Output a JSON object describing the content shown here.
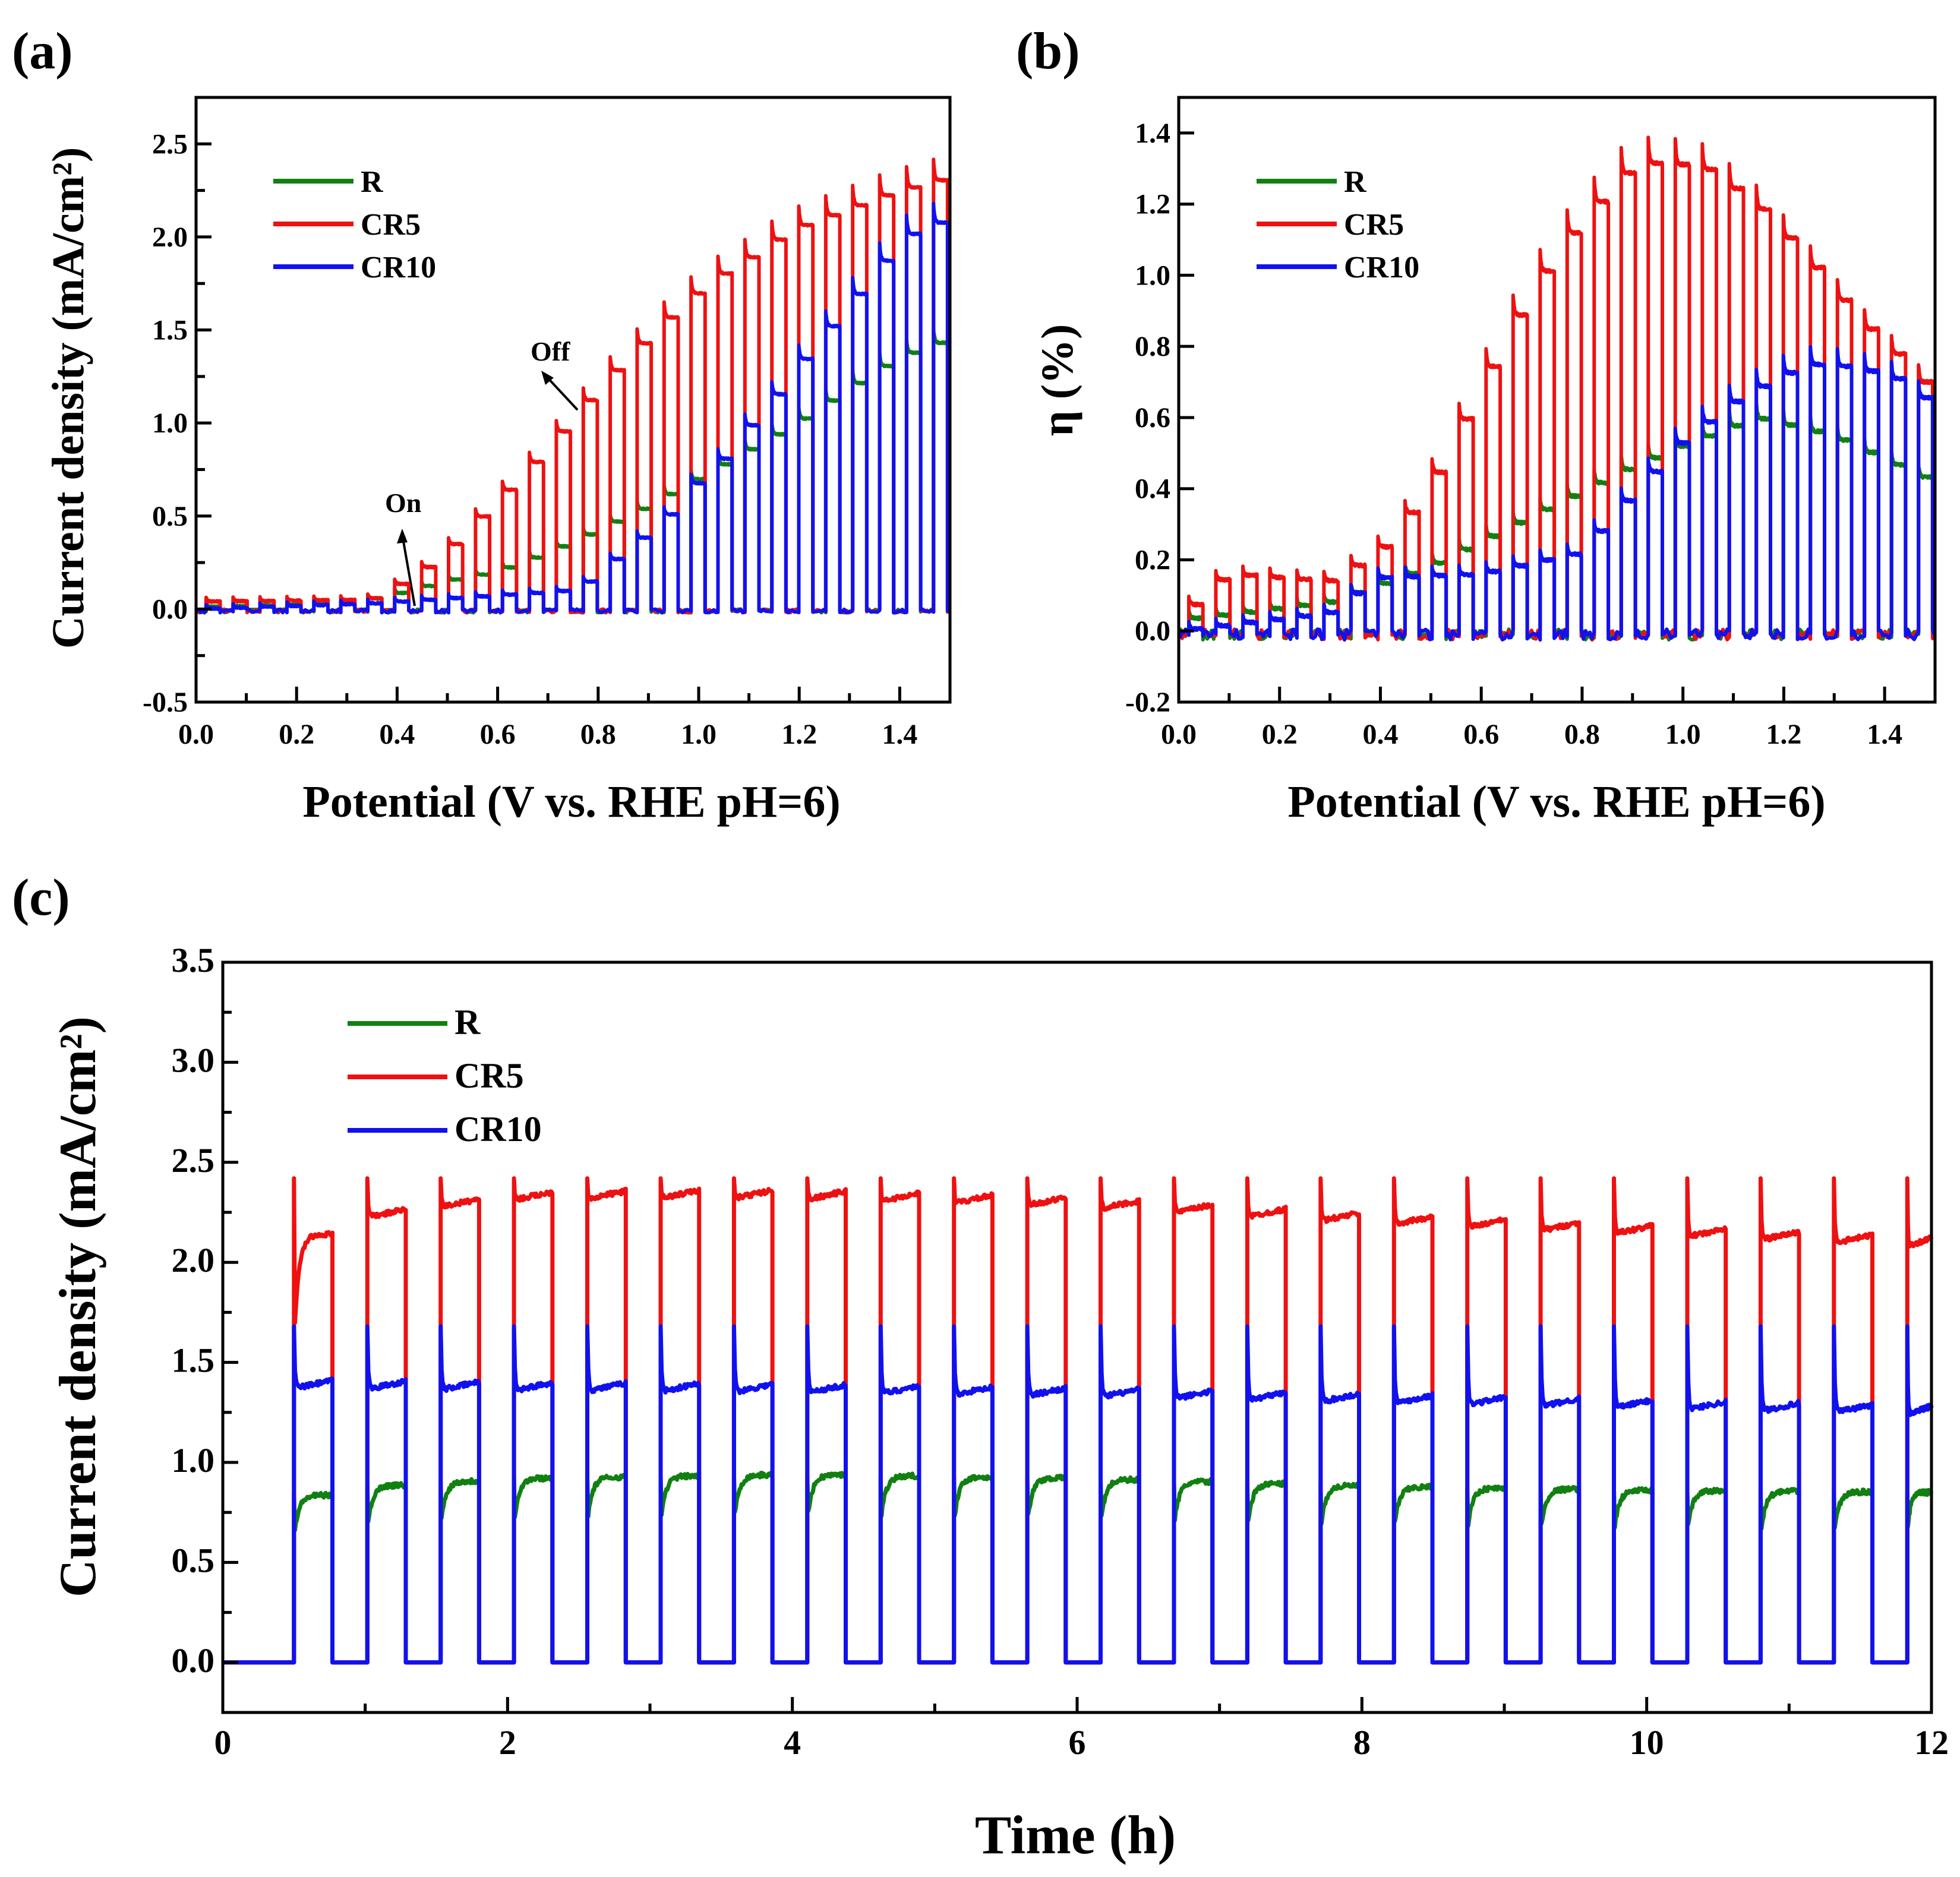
{
  "colors": {
    "R": "#118011",
    "CR5": "#ee1111",
    "CR10": "#1111ee",
    "axis": "#000000"
  },
  "chart_data": [
    {
      "panel": "(a)",
      "type": "line",
      "xlabel": "Potential (V vs. RHE pH=6)",
      "ylabel": "Current density (mA/cm²)",
      "xlim": [
        0,
        1.5
      ],
      "ylim": [
        -0.5,
        2.75
      ],
      "xticks": [
        "0.0",
        "0.2",
        "0.4",
        "0.6",
        "0.8",
        "1.0",
        "1.2",
        "1.4"
      ],
      "yticks": [
        "-0.5",
        "0.0",
        "0.5",
        "1.0",
        "1.5",
        "2.0",
        "2.5"
      ],
      "legend": {
        "placement": "top-left",
        "entries": [
          "R",
          "CR5",
          "CR10"
        ]
      },
      "annotations": [
        "On",
        "Off"
      ],
      "chopping": {
        "first_on": 0.02,
        "period": 0.0536,
        "on_width": 0.028
      },
      "series": [
        {
          "name": "R",
          "light_on_x": [
            0,
            0.3,
            0.4,
            0.5,
            0.6,
            0.7,
            0.8,
            0.9,
            1.0,
            1.1,
            1.2,
            1.3,
            1.4,
            1.5
          ],
          "light_on_y": [
            0.01,
            0.03,
            0.08,
            0.15,
            0.2,
            0.3,
            0.42,
            0.55,
            0.7,
            0.85,
            1.0,
            1.18,
            1.35,
            1.45
          ]
        },
        {
          "name": "CR5",
          "light_on_x": [
            0,
            0.35,
            0.4,
            0.45,
            0.5,
            0.55,
            0.6,
            0.65,
            0.7,
            0.75,
            0.8,
            0.85,
            0.9,
            0.95,
            1.0,
            1.05,
            1.1,
            1.15,
            1.2,
            1.25,
            1.3,
            1.35,
            1.4,
            1.45,
            1.5
          ],
          "light_on_y": [
            0.04,
            0.05,
            0.12,
            0.2,
            0.3,
            0.45,
            0.57,
            0.72,
            0.85,
            1.02,
            1.17,
            1.32,
            1.45,
            1.58,
            1.7,
            1.8,
            1.88,
            1.97,
            2.05,
            2.1,
            2.15,
            2.2,
            2.25,
            2.28,
            2.32
          ]
        },
        {
          "name": "CR10",
          "light_on_x": [
            0,
            0.35,
            0.75,
            0.8,
            0.85,
            0.9,
            0.95,
            1.0,
            1.05,
            1.1,
            1.15,
            1.2,
            1.25,
            1.3,
            1.35,
            1.4,
            1.45,
            1.5
          ],
          "light_on_y": [
            0.0,
            0.03,
            0.1,
            0.17,
            0.3,
            0.4,
            0.52,
            0.68,
            0.8,
            0.97,
            1.12,
            1.3,
            1.47,
            1.62,
            1.8,
            1.95,
            2.07,
            2.08
          ]
        }
      ]
    },
    {
      "panel": "(b)",
      "type": "line",
      "xlabel": "Potential (V vs. RHE pH=6)",
      "ylabel": "η (%)",
      "xlim": [
        0,
        1.5
      ],
      "ylim": [
        -0.2,
        1.5
      ],
      "xticks": [
        "0.0",
        "0.2",
        "0.4",
        "0.6",
        "0.8",
        "1.0",
        "1.2",
        "1.4"
      ],
      "yticks": [
        "-0.2",
        "0.0",
        "0.2",
        "0.4",
        "0.6",
        "0.8",
        "1.0",
        "1.2",
        "1.4"
      ],
      "legend": {
        "placement": "top-left",
        "entries": [
          "R",
          "CR5",
          "CR10"
        ]
      },
      "chopping": {
        "first_on": 0.02,
        "period": 0.0536,
        "on_width": 0.028
      },
      "series": [
        {
          "name": "R",
          "light_on_x": [
            0,
            0.3,
            0.5,
            0.7,
            0.9,
            1.0,
            1.15,
            1.3,
            1.5
          ],
          "light_on_y": [
            0.03,
            0.08,
            0.18,
            0.32,
            0.46,
            0.52,
            0.6,
            0.55,
            0.42
          ]
        },
        {
          "name": "CR5",
          "light_on_x": [
            0,
            0.1,
            0.3,
            0.4,
            0.5,
            0.6,
            0.7,
            0.8,
            0.9,
            0.96,
            1.05,
            1.15,
            1.25,
            1.35,
            1.45,
            1.5
          ],
          "light_on_y": [
            0.03,
            0.16,
            0.14,
            0.22,
            0.4,
            0.68,
            0.95,
            1.15,
            1.3,
            1.32,
            1.3,
            1.2,
            1.05,
            0.88,
            0.75,
            0.67
          ]
        },
        {
          "name": "CR10",
          "light_on_x": [
            0,
            0.3,
            0.4,
            0.6,
            0.8,
            0.9,
            1.0,
            1.1,
            1.2,
            1.27,
            1.35,
            1.45,
            1.5
          ],
          "light_on_y": [
            0.0,
            0.05,
            0.15,
            0.16,
            0.22,
            0.38,
            0.53,
            0.64,
            0.72,
            0.75,
            0.74,
            0.7,
            0.63
          ]
        }
      ]
    },
    {
      "panel": "(c)",
      "type": "line",
      "xlabel": "Time (h)",
      "ylabel": "Current density (mA/cm²)",
      "xlim": [
        0,
        12
      ],
      "ylim": [
        -0.25,
        3.5
      ],
      "xticks": [
        "0",
        "2",
        "4",
        "6",
        "8",
        "10",
        "12"
      ],
      "yticks": [
        "0.0",
        "0.5",
        "1.0",
        "1.5",
        "2.0",
        "2.5",
        "3.0",
        "3.5"
      ],
      "legend": {
        "placement": "top-left",
        "entries": [
          "R",
          "CR5",
          "CR10"
        ]
      },
      "chopping": {
        "first_on": 0.5,
        "period": 0.515,
        "on_width": 0.27
      },
      "series": [
        {
          "name": "R",
          "light_on_x": [
            0.5,
            1,
            2,
            4,
            6,
            8,
            10,
            12
          ],
          "light_on_y": [
            0.82,
            0.88,
            0.92,
            0.94,
            0.92,
            0.88,
            0.86,
            0.85
          ],
          "spike": 0.85
        },
        {
          "name": "CR5",
          "light_on_x": [
            0.5,
            1,
            2,
            3,
            4,
            6,
            8,
            10,
            12
          ],
          "light_on_y": [
            2.1,
            2.25,
            2.35,
            2.36,
            2.36,
            2.32,
            2.24,
            2.18,
            2.12
          ],
          "spike": 2.42
        },
        {
          "name": "CR10",
          "light_on_x": [
            0.5,
            2,
            4,
            6,
            8,
            10,
            12
          ],
          "light_on_y": [
            1.41,
            1.4,
            1.39,
            1.37,
            1.34,
            1.31,
            1.28
          ],
          "spike": 1.68
        }
      ]
    }
  ]
}
